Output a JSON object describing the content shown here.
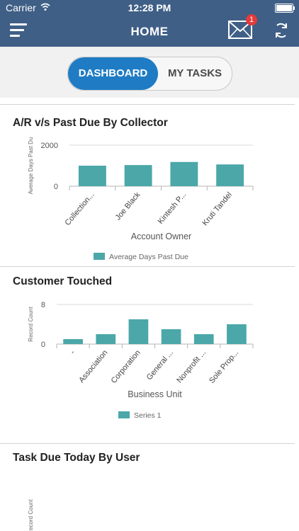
{
  "status_bar": {
    "carrier": "Carrier",
    "time": "12:28 PM"
  },
  "header": {
    "title": "HOME",
    "mail_badge": "1"
  },
  "tabs": {
    "active": "DASHBOARD",
    "inactive": "MY TASKS"
  },
  "cards": [
    {
      "title": "A/R v/s Past Due By Collector"
    },
    {
      "title": "Customer Touched"
    },
    {
      "title": "Task Due Today By User"
    }
  ],
  "chart_data": [
    {
      "type": "bar",
      "title": "A/R v/s Past Due By Collector",
      "categories": [
        "Collection...",
        "Joe Black",
        "Kintesh P...",
        "Kruti Tandel"
      ],
      "series": [
        {
          "name": "Average Days Past Due",
          "values": [
            1000,
            1030,
            1180,
            1060
          ]
        }
      ],
      "ylabel": "Average Days Past Du",
      "xlabel": "Account Owner",
      "y_ticks": [
        "2000",
        "0"
      ],
      "ylim": [
        0,
        2000
      ],
      "color": "#4ba7a8"
    },
    {
      "type": "bar",
      "title": "Customer Touched",
      "categories": [
        "-",
        "Association",
        "Corporation",
        "General ...",
        "Nonprofit ...",
        "Sole Prop..."
      ],
      "series": [
        {
          "name": "Series 1",
          "values": [
            1,
            2,
            5,
            3,
            2,
            4
          ]
        }
      ],
      "ylabel": "Record Count",
      "xlabel": "Business Unit",
      "y_ticks": [
        "8",
        "0"
      ],
      "ylim": [
        0,
        8
      ],
      "color": "#4ba7a8"
    },
    {
      "type": "bar",
      "title": "Task Due Today By User",
      "categories": [],
      "series": [],
      "ylabel": "Record Count"
    }
  ]
}
